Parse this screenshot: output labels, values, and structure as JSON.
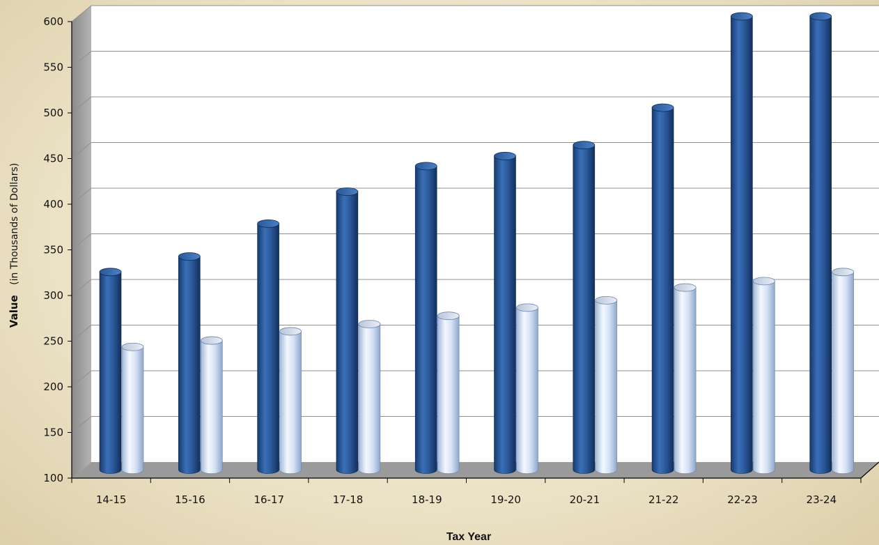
{
  "chart_data": {
    "type": "bar",
    "title": "",
    "xlabel": "Tax Year",
    "ylabel": "Value",
    "ylabel_note": "(in Thousands of Dollars)",
    "ylim": [
      100,
      600
    ],
    "yticks": [
      "100",
      "150",
      "200",
      "250",
      "300",
      "350",
      "400",
      "450",
      "500",
      "550",
      "600"
    ],
    "grid": true,
    "legend": "none",
    "categories": [
      "14-15",
      "15-16",
      "16-17",
      "17-18",
      "18-19",
      "19-20",
      "20-21",
      "21-22",
      "22-23",
      "23-24"
    ],
    "series": [
      {
        "values": [
          320,
          337,
          373,
          408,
          436,
          447,
          459,
          500,
          600,
          600
        ],
        "color": "#2e5fa2"
      },
      {
        "values": [
          238,
          245,
          255,
          263,
          272,
          281,
          289,
          303,
          310,
          320
        ],
        "color": "#c9d9f0"
      }
    ]
  }
}
